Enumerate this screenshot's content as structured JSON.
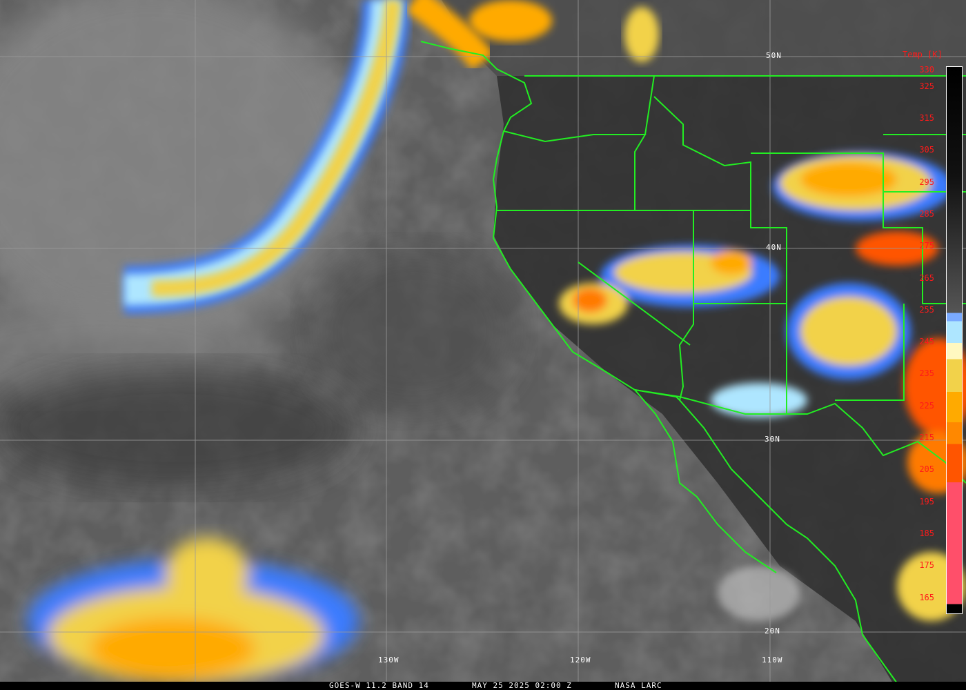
{
  "caption": {
    "satellite": "GOES-W 11.2 BAND 14",
    "datetime": "MAY 25 2025 02:00 Z",
    "source": "NASA LARC"
  },
  "latitude_labels": [
    "50N",
    "40N",
    "30N",
    "20N"
  ],
  "longitude_labels": [
    "130W",
    "120W",
    "110W"
  ],
  "colorbar": {
    "title": "Temp [K]",
    "ticks": [
      "330",
      "325",
      "315",
      "305",
      "295",
      "285",
      "275",
      "265",
      "255",
      "245",
      "235",
      "225",
      "215",
      "205",
      "195",
      "185",
      "175",
      "165"
    ],
    "colors": {
      "warm_top": "#000000",
      "gray_mid": "#9a9a9a",
      "blue": "#3a7cff",
      "light_blue": "#aee6ff",
      "pale_yellow": "#fff8c0",
      "yellow": "#f2d24a",
      "orange": "#ffaa00",
      "dark_orange": "#ff7a00",
      "red_orange": "#ff5500",
      "pink": "#ff4f6a"
    }
  },
  "colors": {
    "borders": "#22ee22",
    "grid": "#9a9a9a",
    "label_text": "#ffffff",
    "tick_text": "#ff1a1a"
  }
}
